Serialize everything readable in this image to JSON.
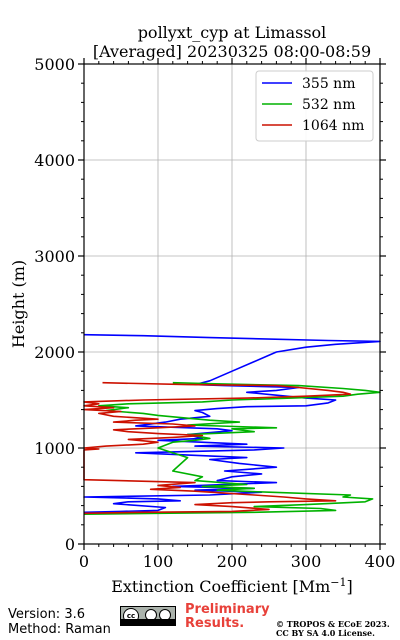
{
  "chart_data": {
    "type": "line",
    "title": "pollyxt_cyp at Limassol",
    "subtitle": "[Averaged] 20230325 08:00-08:59",
    "xlabel": "Extinction Coefficient [Mm⁻¹]",
    "ylabel": "Height (m)",
    "xlim": [
      0,
      400
    ],
    "ylim": [
      0,
      5000
    ],
    "x_ticks": [
      0,
      100,
      200,
      300,
      400
    ],
    "y_ticks": [
      0,
      1000,
      2000,
      3000,
      4000,
      5000
    ],
    "grid": true,
    "legend_position": "top-right",
    "series": [
      {
        "name": "355 nm",
        "color": "#0000ff",
        "points": [
          [
            0,
            330
          ],
          [
            50,
            340
          ],
          [
            100,
            350
          ],
          [
            110,
            380
          ],
          [
            40,
            420
          ],
          [
            60,
            440
          ],
          [
            130,
            450
          ],
          [
            100,
            470
          ],
          [
            0,
            490
          ],
          [
            170,
            510
          ],
          [
            240,
            540
          ],
          [
            150,
            560
          ],
          [
            230,
            580
          ],
          [
            120,
            600
          ],
          [
            190,
            620
          ],
          [
            260,
            640
          ],
          [
            180,
            660
          ],
          [
            200,
            700
          ],
          [
            240,
            730
          ],
          [
            190,
            760
          ],
          [
            260,
            800
          ],
          [
            210,
            840
          ],
          [
            170,
            880
          ],
          [
            220,
            900
          ],
          [
            70,
            950
          ],
          [
            230,
            980
          ],
          [
            270,
            1000
          ],
          [
            150,
            1020
          ],
          [
            220,
            1040
          ],
          [
            100,
            1080
          ],
          [
            160,
            1100
          ],
          [
            140,
            1140
          ],
          [
            200,
            1180
          ],
          [
            180,
            1200
          ],
          [
            70,
            1230
          ],
          [
            110,
            1270
          ],
          [
            130,
            1300
          ],
          [
            170,
            1330
          ],
          [
            160,
            1370
          ],
          [
            150,
            1390
          ],
          [
            180,
            1410
          ],
          [
            220,
            1430
          ],
          [
            300,
            1440
          ],
          [
            330,
            1470
          ],
          [
            340,
            1500
          ],
          [
            300,
            1520
          ],
          [
            260,
            1550
          ],
          [
            220,
            1580
          ],
          [
            260,
            1600
          ],
          [
            290,
            1630
          ],
          [
            190,
            1650
          ],
          [
            150,
            1660
          ],
          [
            170,
            1700
          ],
          [
            200,
            1800
          ],
          [
            230,
            1900
          ],
          [
            260,
            2000
          ],
          [
            300,
            2050
          ],
          [
            340,
            2080
          ],
          [
            400,
            2110
          ],
          [
            330,
            2120
          ],
          [
            170,
            2150
          ],
          [
            80,
            2170
          ],
          [
            0,
            2180
          ]
        ]
      },
      {
        "name": "532 nm",
        "color": "#00b200",
        "points": [
          [
            0,
            310
          ],
          [
            100,
            320
          ],
          [
            230,
            330
          ],
          [
            340,
            350
          ],
          [
            320,
            370
          ],
          [
            230,
            390
          ],
          [
            300,
            410
          ],
          [
            380,
            440
          ],
          [
            390,
            470
          ],
          [
            350,
            490
          ],
          [
            360,
            510
          ],
          [
            250,
            540
          ],
          [
            180,
            560
          ],
          [
            230,
            580
          ],
          [
            160,
            600
          ],
          [
            220,
            620
          ],
          [
            150,
            660
          ],
          [
            160,
            700
          ],
          [
            120,
            760
          ],
          [
            140,
            900
          ],
          [
            100,
            1000
          ],
          [
            120,
            1060
          ],
          [
            150,
            1080
          ],
          [
            170,
            1100
          ],
          [
            140,
            1140
          ],
          [
            230,
            1170
          ],
          [
            200,
            1200
          ],
          [
            260,
            1210
          ],
          [
            140,
            1240
          ],
          [
            210,
            1270
          ],
          [
            170,
            1290
          ],
          [
            140,
            1310
          ],
          [
            100,
            1340
          ],
          [
            80,
            1360
          ],
          [
            30,
            1390
          ],
          [
            60,
            1420
          ],
          [
            20,
            1440
          ],
          [
            60,
            1460
          ],
          [
            160,
            1480
          ],
          [
            200,
            1500
          ],
          [
            280,
            1520
          ],
          [
            350,
            1540
          ],
          [
            370,
            1560
          ],
          [
            400,
            1580
          ],
          [
            380,
            1600
          ],
          [
            350,
            1620
          ],
          [
            290,
            1650
          ],
          [
            170,
            1670
          ],
          [
            120,
            1680
          ]
        ]
      },
      {
        "name": "1064 nm",
        "color": "#cc1100",
        "points": [
          [
            0,
            320
          ],
          [
            80,
            330
          ],
          [
            200,
            340
          ],
          [
            250,
            360
          ],
          [
            200,
            390
          ],
          [
            150,
            410
          ],
          [
            200,
            430
          ],
          [
            250,
            440
          ],
          [
            340,
            450
          ],
          [
            300,
            470
          ],
          [
            270,
            490
          ],
          [
            230,
            510
          ],
          [
            190,
            530
          ],
          [
            150,
            550
          ],
          [
            90,
            570
          ],
          [
            130,
            590
          ],
          [
            100,
            610
          ],
          [
            150,
            640
          ],
          [
            0,
            670
          ],
          [
            0,
            980
          ],
          [
            20,
            990
          ],
          [
            0,
            1000
          ],
          [
            30,
            1020
          ],
          [
            80,
            1040
          ],
          [
            100,
            1060
          ],
          [
            60,
            1090
          ],
          [
            120,
            1110
          ],
          [
            160,
            1130
          ],
          [
            100,
            1150
          ],
          [
            60,
            1170
          ],
          [
            40,
            1190
          ],
          [
            100,
            1210
          ],
          [
            150,
            1230
          ],
          [
            120,
            1250
          ],
          [
            40,
            1270
          ],
          [
            70,
            1290
          ],
          [
            100,
            1300
          ],
          [
            40,
            1330
          ],
          [
            20,
            1360
          ],
          [
            50,
            1380
          ],
          [
            0,
            1400
          ],
          [
            40,
            1420
          ],
          [
            0,
            1440
          ],
          [
            20,
            1460
          ],
          [
            0,
            1480
          ],
          [
            80,
            1500
          ],
          [
            220,
            1520
          ],
          [
            300,
            1540
          ],
          [
            360,
            1560
          ],
          [
            350,
            1580
          ],
          [
            330,
            1600
          ],
          [
            290,
            1630
          ],
          [
            260,
            1650
          ],
          [
            140,
            1660
          ],
          [
            25,
            1680
          ]
        ]
      }
    ]
  },
  "footer": {
    "version": "Version: 3.6",
    "method": "Method: Raman",
    "preliminary_line1": "Preliminary",
    "preliminary_line2": "Results.",
    "copyright_line1": "© TROPOS & ECoE 2023.",
    "copyright_line2": "CC BY SA 4.0 License.",
    "badge_text": "cc"
  }
}
